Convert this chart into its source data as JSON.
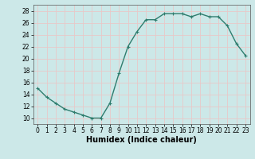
{
  "x": [
    0,
    1,
    2,
    3,
    4,
    5,
    6,
    7,
    8,
    9,
    10,
    11,
    12,
    13,
    14,
    15,
    16,
    17,
    18,
    19,
    20,
    21,
    22,
    23
  ],
  "y": [
    15,
    13.5,
    12.5,
    11.5,
    11,
    10.5,
    10,
    10,
    12.5,
    17.5,
    22,
    24.5,
    26.5,
    26.5,
    27.5,
    27.5,
    27.5,
    27,
    27.5,
    27,
    27,
    25.5,
    22.5,
    20.5
  ],
  "line_color": "#2e7d6e",
  "marker": "+",
  "marker_size": 3,
  "linewidth": 1.0,
  "xlabel": "Humidex (Indice chaleur)",
  "xlabel_fontsize": 7,
  "xlim": [
    -0.5,
    23.5
  ],
  "ylim": [
    9,
    29
  ],
  "yticks": [
    10,
    12,
    14,
    16,
    18,
    20,
    22,
    24,
    26,
    28
  ],
  "xticks": [
    0,
    1,
    2,
    3,
    4,
    5,
    6,
    7,
    8,
    9,
    10,
    11,
    12,
    13,
    14,
    15,
    16,
    17,
    18,
    19,
    20,
    21,
    22,
    23
  ],
  "xtick_labels": [
    "0",
    "1",
    "2",
    "3",
    "4",
    "5",
    "6",
    "7",
    "8",
    "9",
    "10",
    "11",
    "12",
    "13",
    "14",
    "15",
    "16",
    "17",
    "18",
    "19",
    "20",
    "21",
    "22",
    "23"
  ],
  "bg_color": "#cce8e8",
  "grid_color": "#e8c8c8",
  "tick_fontsize": 5.5,
  "title": ""
}
